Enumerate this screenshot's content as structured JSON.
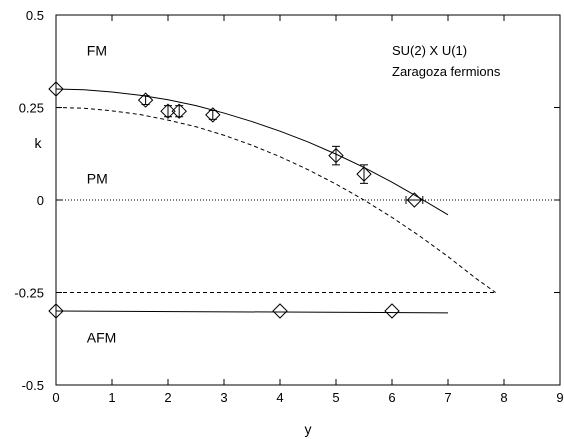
{
  "chart_data": {
    "type": "scatter",
    "title": "",
    "legend_lines": [
      "SU(2) X U(1)",
      "Zaragoza fermions"
    ],
    "xlabel": "y",
    "ylabel": "k",
    "xlim": [
      0,
      9
    ],
    "ylim": [
      -0.5,
      0.5
    ],
    "x_ticks": [
      0,
      1,
      2,
      3,
      4,
      5,
      6,
      7,
      8,
      9
    ],
    "x_tick_labels": [
      "0",
      "1",
      "2",
      "3",
      "4",
      "5",
      "6",
      "7",
      "8",
      "9"
    ],
    "y_ticks": [
      -0.5,
      -0.25,
      0,
      0.25,
      0.5
    ],
    "y_tick_labels": [
      "-0.5",
      "-0.25",
      "0",
      "0.25",
      "0.5"
    ],
    "grid": false,
    "region_labels": [
      {
        "text": "FM",
        "x": 0.55,
        "y": 0.39
      },
      {
        "text": "PM",
        "x": 0.55,
        "y": 0.045
      },
      {
        "text": "AFM",
        "x": 0.55,
        "y": -0.385
      }
    ],
    "series": [
      {
        "style": "points-with-errorbars",
        "marker": "diamond",
        "points": [
          {
            "x": 0.0,
            "y": 0.3,
            "xerr": 0,
            "yerr": 0
          },
          {
            "x": 1.6,
            "y": 0.27,
            "xerr": 0,
            "yerr": 0.012
          },
          {
            "x": 2.0,
            "y": 0.24,
            "xerr": 0,
            "yerr": 0.015
          },
          {
            "x": 2.2,
            "y": 0.24,
            "xerr": 0,
            "yerr": 0.015
          },
          {
            "x": 2.8,
            "y": 0.23,
            "xerr": 0,
            "yerr": 0.012
          },
          {
            "x": 5.0,
            "y": 0.12,
            "xerr": 0,
            "yerr": 0.025
          },
          {
            "x": 5.5,
            "y": 0.07,
            "xerr": 0,
            "yerr": 0.025
          },
          {
            "x": 6.4,
            "y": 0.0,
            "xerr": 0.15,
            "yerr": 0
          }
        ]
      },
      {
        "style": "points-with-errorbars",
        "marker": "diamond",
        "points": [
          {
            "x": 0.0,
            "y": -0.3,
            "xerr": 0,
            "yerr": 0
          },
          {
            "x": 4.0,
            "y": -0.3,
            "xerr": 0,
            "yerr": 0
          },
          {
            "x": 6.0,
            "y": -0.3,
            "xerr": 0,
            "yerr": 0
          }
        ]
      },
      {
        "style": "solid",
        "x": [
          0,
          0.5,
          1,
          1.5,
          2,
          2.5,
          3,
          3.5,
          4,
          4.5,
          5,
          5.5,
          6,
          6.5,
          7
        ],
        "y": [
          0.3,
          0.298,
          0.292,
          0.283,
          0.271,
          0.255,
          0.235,
          0.212,
          0.186,
          0.157,
          0.124,
          0.088,
          0.048,
          0.005,
          -0.04
        ]
      },
      {
        "style": "solid",
        "x": [
          0,
          7
        ],
        "y": [
          -0.3,
          -0.305
        ]
      },
      {
        "style": "dashed",
        "x": [
          0,
          0.5,
          1,
          1.5,
          2,
          2.5,
          3,
          3.5,
          4,
          4.5,
          5,
          5.5,
          6,
          6.5,
          7,
          7.5,
          7.85
        ],
        "y": [
          0.25,
          0.248,
          0.241,
          0.231,
          0.216,
          0.198,
          0.175,
          0.148,
          0.117,
          0.082,
          0.043,
          0.0,
          -0.047,
          -0.098,
          -0.153,
          -0.212,
          -0.25
        ]
      },
      {
        "style": "dashed",
        "x": [
          0,
          7.85
        ],
        "y": [
          -0.25,
          -0.25
        ]
      },
      {
        "style": "dotted",
        "x": [
          0,
          9
        ],
        "y": [
          0,
          0
        ]
      }
    ]
  }
}
